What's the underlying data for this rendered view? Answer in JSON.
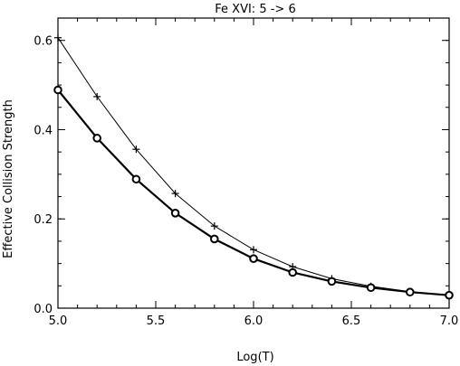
{
  "chart_data": {
    "type": "line",
    "title": "Fe XVI: 5 -> 6",
    "xlabel": "Log(T)",
    "ylabel": "Effective Collision Strength",
    "xlim": [
      5.0,
      7.0
    ],
    "ylim": [
      0.0,
      0.65
    ],
    "xticks": [
      5.0,
      5.5,
      6.0,
      6.5,
      7.0
    ],
    "xtick_labels": [
      "5.0",
      "5.5",
      "6.0",
      "6.5",
      "7.0"
    ],
    "yticks": [
      0.0,
      0.2,
      0.4,
      0.6
    ],
    "ytick_labels": [
      "0.0",
      "0.2",
      "0.4",
      "0.6"
    ],
    "grid": false,
    "legend": "none",
    "series": [
      {
        "marker": "plus",
        "color": "#000000",
        "x": [
          5.0,
          5.2,
          5.4,
          5.6,
          5.8,
          6.0,
          6.2,
          6.4,
          6.6,
          6.8,
          7.0
        ],
        "y": [
          0.606,
          0.474,
          0.356,
          0.257,
          0.184,
          0.131,
          0.093,
          0.066,
          0.049,
          0.037,
          0.029
        ]
      },
      {
        "marker": "circle",
        "color": "#000000",
        "x": [
          5.0,
          5.2,
          5.4,
          5.6,
          5.8,
          6.0,
          6.2,
          6.4,
          6.6,
          6.8,
          7.0
        ],
        "y": [
          0.489,
          0.381,
          0.289,
          0.213,
          0.155,
          0.111,
          0.08,
          0.06,
          0.046,
          0.036,
          0.029
        ]
      }
    ]
  }
}
